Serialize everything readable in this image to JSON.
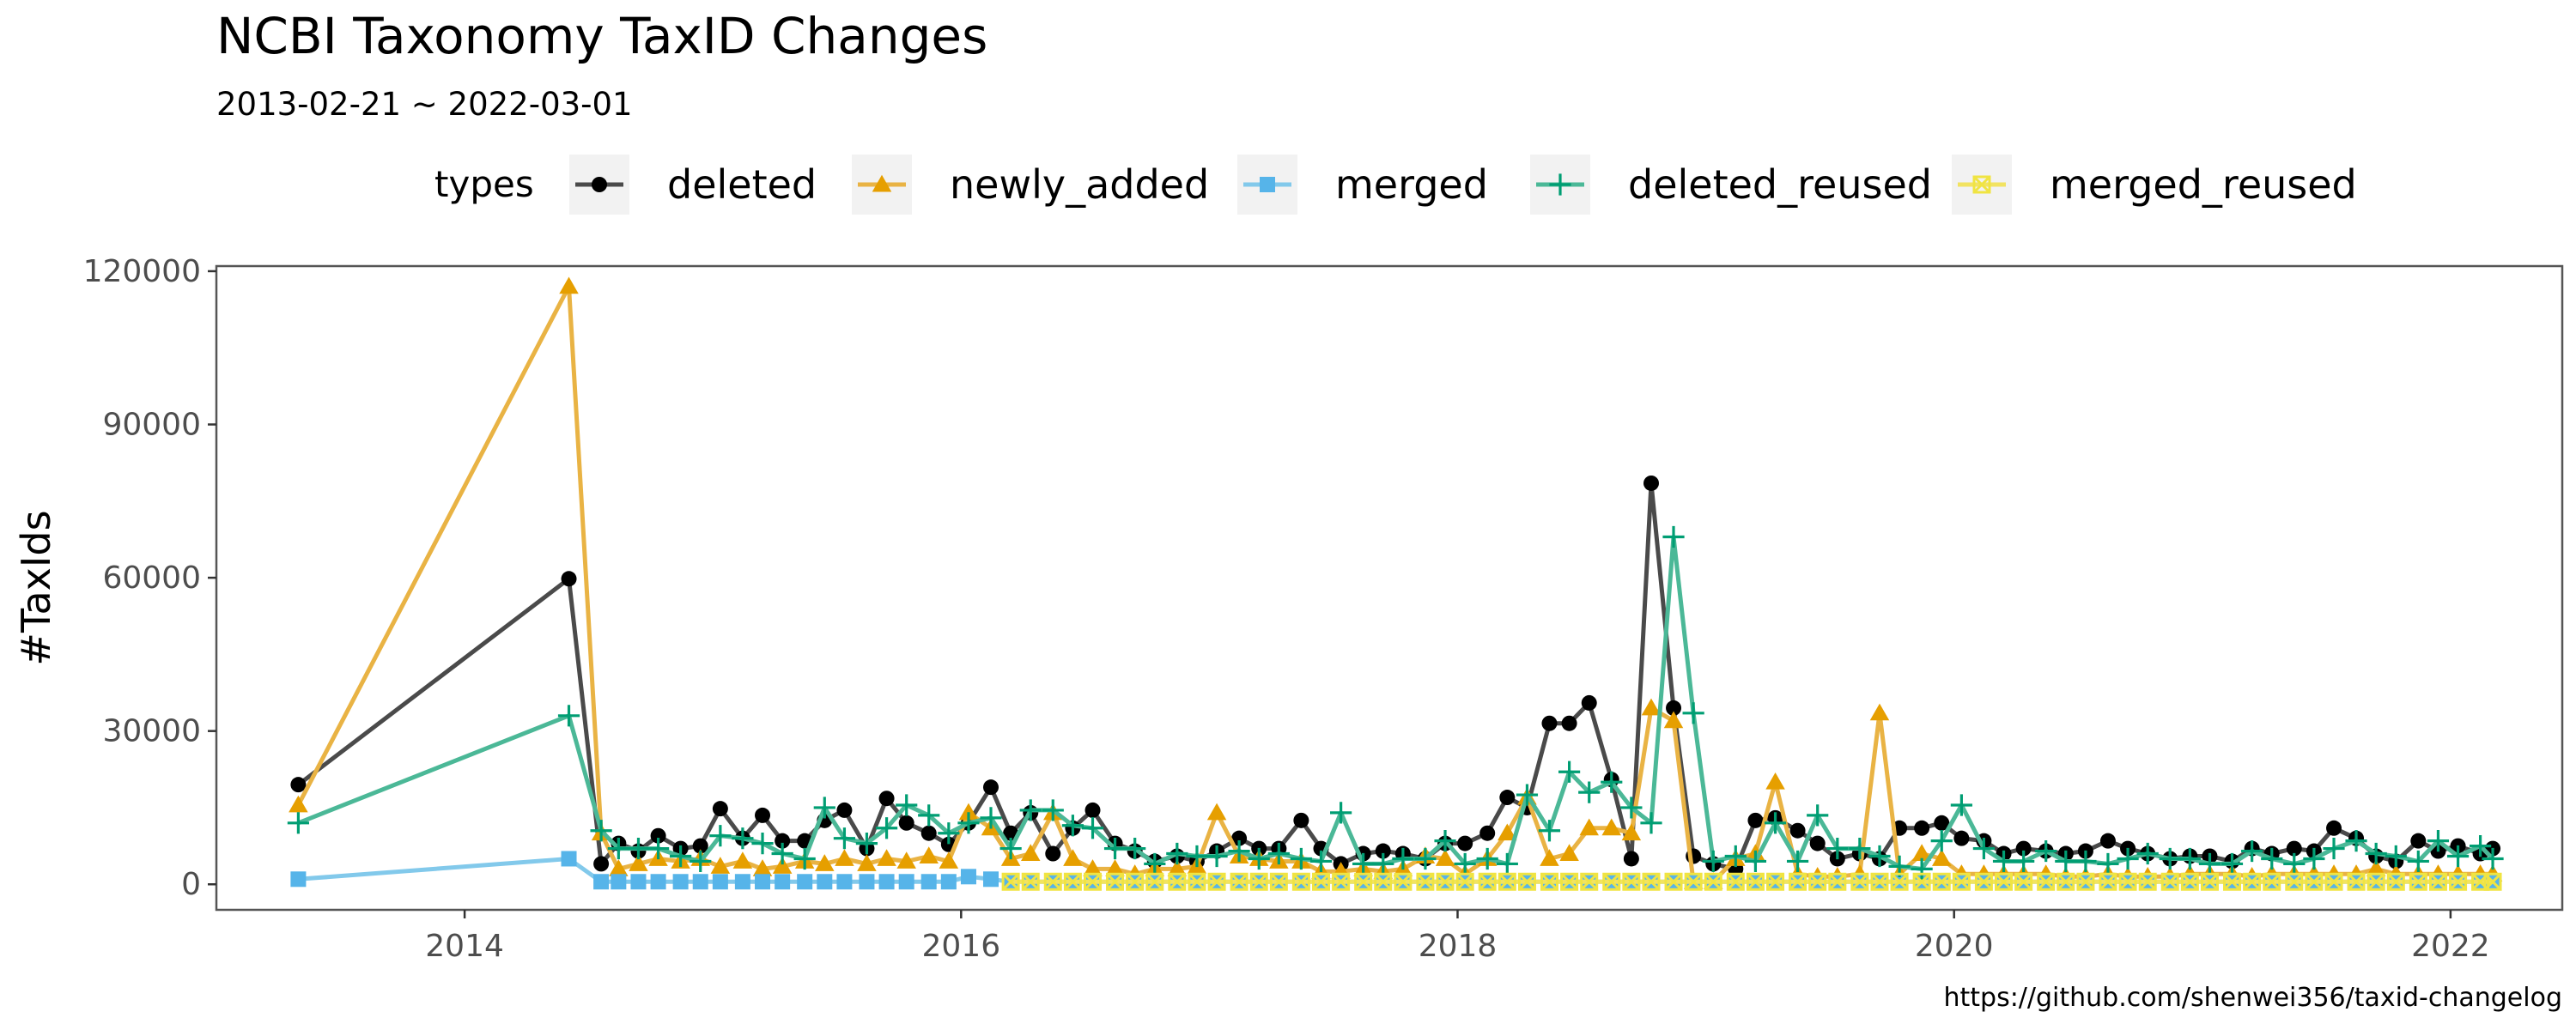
{
  "chart_data": {
    "type": "line",
    "title": "NCBI Taxonomy TaxID Changes",
    "subtitle": "2013-02-21 ~ 2022-03-01",
    "ylabel": "#TaxIds",
    "xlabel": "",
    "caption": "https://github.com/shenwei356/taxid-changelog",
    "legend": {
      "title": "types",
      "position": "top"
    },
    "xlim": [
      2013.0,
      2022.45
    ],
    "ylim": [
      -5000,
      121000
    ],
    "x_ticks": [
      "2014",
      "2016",
      "2018",
      "2020",
      "2022"
    ],
    "y_ticks": [
      "0",
      "30000",
      "60000",
      "90000",
      "120000"
    ],
    "grid": false,
    "x": [
      2013.33,
      2014.42,
      2014.55,
      2014.62,
      2014.7,
      2014.78,
      2014.87,
      2014.95,
      2015.03,
      2015.12,
      2015.2,
      2015.28,
      2015.37,
      2015.45,
      2015.53,
      2015.62,
      2015.7,
      2015.78,
      2015.87,
      2015.95,
      2016.03,
      2016.12,
      2016.2,
      2016.28,
      2016.37,
      2016.45,
      2016.53,
      2016.62,
      2016.7,
      2016.78,
      2016.87,
      2016.95,
      2017.03,
      2017.12,
      2017.2,
      2017.28,
      2017.37,
      2017.45,
      2017.53,
      2017.62,
      2017.7,
      2017.78,
      2017.87,
      2017.95,
      2018.03,
      2018.12,
      2018.2,
      2018.28,
      2018.37,
      2018.45,
      2018.53,
      2018.62,
      2018.7,
      2018.78,
      2018.87,
      2018.95,
      2019.03,
      2019.12,
      2019.2,
      2019.28,
      2019.37,
      2019.45,
      2019.53,
      2019.62,
      2019.7,
      2019.78,
      2019.87,
      2019.95,
      2020.03,
      2020.12,
      2020.2,
      2020.28,
      2020.37,
      2020.45,
      2020.53,
      2020.62,
      2020.7,
      2020.78,
      2020.87,
      2020.95,
      2021.03,
      2021.12,
      2021.2,
      2021.28,
      2021.37,
      2021.45,
      2021.53,
      2021.62,
      2021.7,
      2021.78,
      2021.87,
      2021.95,
      2022.03,
      2022.12,
      2022.17
    ],
    "series": [
      {
        "name": "deleted",
        "color": "#4a4a4a",
        "marker": "circle",
        "values": [
          19500,
          59800,
          4000,
          8000,
          6500,
          9500,
          7000,
          7500,
          14800,
          9000,
          13500,
          8500,
          8500,
          12500,
          14500,
          7000,
          16800,
          12000,
          10000,
          7800,
          12000,
          19000,
          10000,
          14000,
          6000,
          11000,
          14500,
          8000,
          6500,
          4500,
          5500,
          4500,
          6500,
          9000,
          7000,
          7000,
          12500,
          7000,
          4000,
          6000,
          6500,
          6000,
          5000,
          8000,
          8000,
          10000,
          17000,
          15000,
          31500,
          31500,
          35500,
          20500,
          5000,
          78500,
          34500,
          5500,
          4000,
          3000,
          12500,
          13000,
          10500,
          8000,
          5000,
          6000,
          5000,
          11000,
          11000,
          12000,
          9000,
          8500,
          6000,
          7000,
          6500,
          6000,
          6500,
          8500,
          7000,
          6000,
          5000,
          5500,
          5500,
          4500,
          7000,
          6000,
          7000,
          6500,
          11000,
          9000,
          5500,
          4500,
          8500,
          6500,
          7500,
          6000,
          7000
        ]
      },
      {
        "name": "newly_added",
        "color": "#e9b344",
        "marker": "triangle",
        "values": [
          15500,
          117000,
          10000,
          3000,
          4000,
          5000,
          4500,
          5000,
          3500,
          4500,
          3000,
          3500,
          4500,
          4000,
          5000,
          4000,
          5000,
          4500,
          5500,
          4500,
          14000,
          11000,
          5000,
          6000,
          14000,
          5000,
          3000,
          3000,
          2000,
          3000,
          3000,
          3500,
          14000,
          5500,
          5000,
          4500,
          4500,
          2500,
          2500,
          3000,
          2500,
          3000,
          5500,
          5000,
          2000,
          5000,
          10000,
          17000,
          5000,
          6000,
          11000,
          11000,
          10000,
          34500,
          32000,
          500,
          500,
          5000,
          6000,
          20000,
          2000,
          1500,
          1500,
          2000,
          33500,
          2000,
          6000,
          5000,
          2000,
          2000,
          2000,
          2000,
          2000,
          1500,
          1500,
          2000,
          1500,
          1500,
          1500,
          2000,
          2000,
          2000,
          1500,
          2000,
          2000,
          2000,
          2000,
          2000,
          3000,
          2000,
          2000,
          2000,
          2000,
          2000,
          2000
        ]
      },
      {
        "name": "merged",
        "color": "#82c9eb",
        "marker": "square",
        "values": [
          1000,
          5000,
          500,
          500,
          500,
          500,
          500,
          500,
          500,
          500,
          500,
          500,
          500,
          500,
          500,
          500,
          500,
          500,
          500,
          500,
          1500,
          1000,
          500,
          500,
          500,
          500,
          500,
          500,
          500,
          500,
          500,
          500,
          500,
          500,
          500,
          500,
          500,
          500,
          500,
          500,
          500,
          500,
          500,
          500,
          500,
          500,
          500,
          500,
          500,
          500,
          500,
          500,
          500,
          500,
          500,
          500,
          500,
          500,
          500,
          500,
          500,
          500,
          500,
          500,
          500,
          500,
          500,
          500,
          500,
          500,
          500,
          500,
          500,
          500,
          500,
          500,
          500,
          500,
          500,
          500,
          500,
          500,
          500,
          500,
          500,
          500,
          500,
          500,
          500,
          500,
          500,
          500,
          500,
          500,
          500
        ]
      },
      {
        "name": "deleted_reused",
        "color": "#4bb897",
        "marker": "plus",
        "values": [
          12000,
          33000,
          10500,
          7000,
          7000,
          7000,
          5500,
          4500,
          9500,
          9000,
          8000,
          6000,
          5000,
          15000,
          9000,
          8000,
          11000,
          15500,
          13500,
          10000,
          12000,
          13000,
          7000,
          14500,
          14500,
          11500,
          11000,
          7000,
          7000,
          4000,
          6000,
          5500,
          5500,
          6500,
          5000,
          6000,
          5000,
          4500,
          14000,
          4000,
          4000,
          5000,
          5000,
          8500,
          4000,
          5000,
          4000,
          17500,
          10500,
          22000,
          18000,
          20000,
          15000,
          12000,
          68000,
          33500,
          4500,
          5500,
          4500,
          12000,
          4500,
          13500,
          7000,
          7000,
          5500,
          3500,
          3000,
          8500,
          15500,
          7000,
          4500,
          4500,
          6500,
          4500,
          4500,
          4000,
          5000,
          6000,
          5000,
          5000,
          4000,
          4000,
          6500,
          5000,
          4000,
          5000,
          7000,
          8500,
          6000,
          5500,
          4500,
          8500,
          5500,
          7500,
          5000
        ]
      },
      {
        "name": "merged_reused",
        "color": "#f2e361",
        "marker": "xsquare",
        "values": [
          null,
          null,
          null,
          null,
          null,
          null,
          null,
          null,
          null,
          null,
          null,
          null,
          null,
          null,
          null,
          null,
          null,
          null,
          null,
          null,
          null,
          null,
          500,
          500,
          500,
          500,
          500,
          500,
          500,
          500,
          500,
          500,
          500,
          500,
          500,
          500,
          500,
          500,
          500,
          500,
          500,
          500,
          500,
          500,
          500,
          500,
          500,
          500,
          500,
          500,
          500,
          500,
          500,
          500,
          500,
          500,
          500,
          500,
          500,
          500,
          500,
          500,
          500,
          500,
          500,
          500,
          500,
          500,
          500,
          500,
          500,
          500,
          500,
          500,
          500,
          500,
          500,
          500,
          500,
          500,
          500,
          500,
          500,
          500,
          500,
          500,
          500,
          500,
          500,
          500,
          500,
          500,
          500,
          500,
          500
        ]
      }
    ]
  }
}
